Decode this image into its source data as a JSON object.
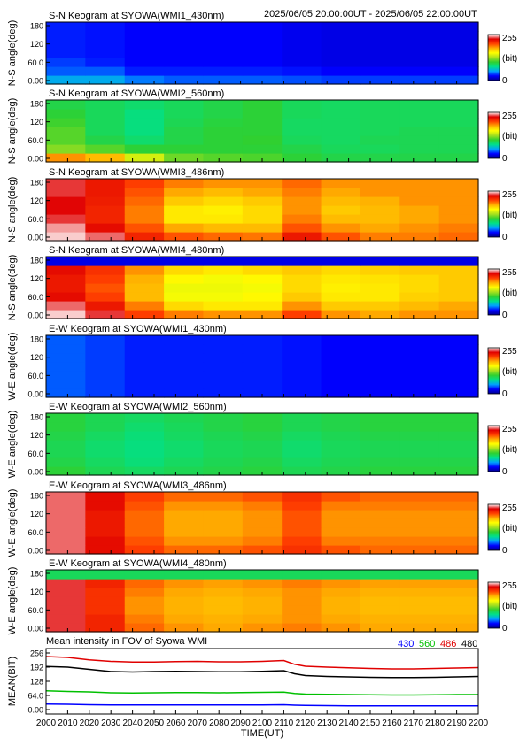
{
  "header": {
    "time_range": "2025/06/05 20:00:00UT - 2025/06/05 22:00:00UT"
  },
  "colorbar": {
    "max_label": "255",
    "unit_label": "(bit)",
    "min_label": "0",
    "stops": [
      "#00008b",
      "#0000ff",
      "#00a0ff",
      "#00e08a",
      "#30d030",
      "#a8e01e",
      "#ffff00",
      "#ffb000",
      "#ff4000",
      "#e00000",
      "#ffffff"
    ]
  },
  "chart_data": [
    {
      "type": "heatmap",
      "title": "S-N Keogram at SYOWA(WMI1_430nm)",
      "ylabel": "N-S angle(deg)",
      "yticks": [
        "180",
        "120",
        "60.0",
        "0.00"
      ],
      "ylim": [
        0,
        180
      ],
      "xlim": [
        2000,
        2200
      ],
      "value_range": [
        0,
        255
      ],
      "columns_x": [
        2000,
        2020,
        2040,
        2060,
        2080,
        2100,
        2120,
        2140,
        2160,
        2180,
        2200
      ],
      "rows_angle": [
        0,
        30,
        60,
        90,
        120,
        150,
        180
      ],
      "values": [
        [
          55,
          55,
          45,
          40,
          40,
          40,
          38,
          35,
          35,
          35,
          35
        ],
        [
          40,
          40,
          30,
          30,
          30,
          30,
          28,
          25,
          25,
          25,
          25
        ],
        [
          35,
          30,
          25,
          25,
          25,
          25,
          22,
          20,
          20,
          20,
          20
        ],
        [
          30,
          28,
          25,
          25,
          25,
          25,
          22,
          20,
          20,
          20,
          20
        ],
        [
          30,
          28,
          25,
          25,
          25,
          25,
          22,
          20,
          20,
          20,
          20
        ],
        [
          30,
          28,
          25,
          25,
          25,
          25,
          22,
          20,
          20,
          20,
          20
        ],
        [
          30,
          28,
          25,
          25,
          25,
          25,
          22,
          20,
          20,
          20,
          20
        ]
      ]
    },
    {
      "type": "heatmap",
      "title": "S-N Keogram at SYOWA(WMI2_560nm)",
      "ylabel": "N-S angle(deg)",
      "yticks": [
        "180",
        "120",
        "60.0",
        "0.00"
      ],
      "ylim": [
        0,
        180
      ],
      "xlim": [
        2000,
        2200
      ],
      "value_range": [
        0,
        255
      ],
      "columns_x": [
        2000,
        2020,
        2040,
        2060,
        2080,
        2100,
        2120,
        2140,
        2160,
        2180,
        2200
      ],
      "rows_angle": [
        0,
        30,
        60,
        90,
        120,
        150,
        180
      ],
      "values": [
        [
          185,
          175,
          140,
          115,
          110,
          108,
          100,
          95,
          95,
          95,
          95
        ],
        [
          120,
          110,
          100,
          100,
          100,
          100,
          95,
          90,
          90,
          92,
          92
        ],
        [
          110,
          95,
          85,
          95,
          100,
          102,
          90,
          88,
          92,
          92,
          92
        ],
        [
          110,
          90,
          80,
          95,
          100,
          100,
          88,
          88,
          90,
          92,
          92
        ],
        [
          105,
          90,
          80,
          92,
          98,
          100,
          88,
          88,
          90,
          90,
          90
        ],
        [
          100,
          90,
          80,
          90,
          95,
          100,
          90,
          88,
          90,
          90,
          90
        ],
        [
          95,
          90,
          85,
          90,
          95,
          100,
          90,
          88,
          90,
          90,
          90
        ]
      ]
    },
    {
      "type": "heatmap",
      "title": "S-N Keogram at SYOWA(WMI3_486nm)",
      "ylabel": "N-S angle(deg)",
      "yticks": [
        "180",
        "120",
        "60.0",
        "0.00"
      ],
      "ylim": [
        0,
        180
      ],
      "xlim": [
        2000,
        2200
      ],
      "value_range": [
        0,
        255
      ],
      "columns_x": [
        2000,
        2020,
        2040,
        2060,
        2080,
        2100,
        2120,
        2140,
        2160,
        2180,
        2200
      ],
      "rows_angle": [
        0,
        30,
        60,
        90,
        120,
        150,
        180
      ],
      "values": [
        [
          250,
          240,
          215,
          200,
          195,
          192,
          220,
          200,
          190,
          190,
          195
        ],
        [
          245,
          225,
          200,
          180,
          175,
          175,
          200,
          185,
          180,
          185,
          190
        ],
        [
          235,
          215,
          190,
          160,
          160,
          165,
          190,
          175,
          175,
          180,
          185
        ],
        [
          230,
          215,
          190,
          160,
          158,
          165,
          185,
          170,
          175,
          180,
          185
        ],
        [
          230,
          218,
          195,
          170,
          165,
          170,
          185,
          175,
          178,
          185,
          185
        ],
        [
          235,
          220,
          200,
          180,
          175,
          180,
          190,
          180,
          185,
          185,
          185
        ],
        [
          235,
          220,
          205,
          190,
          185,
          185,
          195,
          185,
          185,
          185,
          185
        ]
      ]
    },
    {
      "type": "heatmap",
      "title": "S-N Keogram at SYOWA(WMI4_480nm)",
      "ylabel": "N-S angle(deg)",
      "yticks": [
        "180",
        "120",
        "60.0",
        "0.00"
      ],
      "ylim": [
        0,
        180
      ],
      "xlim": [
        2000,
        2200
      ],
      "value_range": [
        0,
        255
      ],
      "columns_x": [
        2000,
        2020,
        2040,
        2060,
        2080,
        2100,
        2120,
        2140,
        2160,
        2180,
        2200
      ],
      "rows_angle": [
        0,
        30,
        60,
        90,
        120,
        150,
        180
      ],
      "values": [
        [
          250,
          235,
          205,
          190,
          185,
          185,
          205,
          185,
          180,
          185,
          185
        ],
        [
          240,
          220,
          190,
          165,
          160,
          160,
          185,
          170,
          170,
          175,
          180
        ],
        [
          225,
          205,
          175,
          150,
          150,
          155,
          170,
          160,
          160,
          168,
          170
        ],
        [
          220,
          200,
          175,
          148,
          148,
          150,
          165,
          158,
          160,
          165,
          170
        ],
        [
          220,
          205,
          178,
          155,
          150,
          155,
          165,
          160,
          162,
          165,
          170
        ],
        [
          225,
          210,
          185,
          165,
          160,
          165,
          170,
          165,
          168,
          170,
          170
        ],
        [
          20,
          20,
          20,
          20,
          20,
          20,
          20,
          20,
          20,
          20,
          20
        ]
      ]
    },
    {
      "type": "heatmap",
      "title": "E-W Keogram at SYOWA(WMI1_430nm)",
      "ylabel": "W-E angle(deg)",
      "yticks": [
        "180",
        "120",
        "60.0",
        "0.00"
      ],
      "ylim": [
        0,
        180
      ],
      "xlim": [
        2000,
        2200
      ],
      "value_range": [
        0,
        255
      ],
      "columns_x": [
        2000,
        2020,
        2040,
        2060,
        2080,
        2100,
        2120,
        2140,
        2160,
        2180,
        2200
      ],
      "rows_angle": [
        0,
        30,
        60,
        90,
        120,
        150,
        180
      ],
      "values": [
        [
          40,
          35,
          30,
          30,
          30,
          30,
          28,
          25,
          25,
          25,
          25
        ],
        [
          40,
          35,
          30,
          30,
          30,
          30,
          28,
          25,
          25,
          25,
          25
        ],
        [
          40,
          35,
          30,
          30,
          30,
          30,
          28,
          25,
          25,
          25,
          25
        ],
        [
          40,
          35,
          30,
          30,
          30,
          30,
          28,
          25,
          25,
          25,
          25
        ],
        [
          40,
          35,
          30,
          30,
          30,
          30,
          28,
          25,
          25,
          25,
          25
        ],
        [
          40,
          35,
          30,
          30,
          30,
          30,
          28,
          25,
          25,
          25,
          25
        ],
        [
          40,
          35,
          30,
          30,
          30,
          30,
          28,
          25,
          25,
          25,
          25
        ]
      ]
    },
    {
      "type": "heatmap",
      "title": "E-W Keogram at SYOWA(WMI2_560nm)",
      "ylabel": "W-E angle(deg)",
      "yticks": [
        "180",
        "120",
        "60.0",
        "0.00"
      ],
      "ylim": [
        0,
        180
      ],
      "xlim": [
        2000,
        2200
      ],
      "value_range": [
        0,
        255
      ],
      "columns_x": [
        2000,
        2020,
        2040,
        2060,
        2080,
        2100,
        2120,
        2140,
        2160,
        2180,
        2200
      ],
      "rows_angle": [
        0,
        30,
        60,
        90,
        120,
        150,
        180
      ],
      "values": [
        [
          100,
          92,
          88,
          92,
          95,
          98,
          92,
          95,
          98,
          98,
          98
        ],
        [
          95,
          88,
          82,
          88,
          92,
          95,
          88,
          92,
          95,
          95,
          95
        ],
        [
          92,
          85,
          80,
          85,
          90,
          92,
          85,
          90,
          92,
          92,
          92
        ],
        [
          92,
          85,
          80,
          85,
          90,
          92,
          85,
          90,
          92,
          92,
          92
        ],
        [
          95,
          88,
          82,
          88,
          92,
          95,
          88,
          92,
          95,
          95,
          95
        ],
        [
          98,
          92,
          85,
          90,
          95,
          98,
          92,
          95,
          98,
          98,
          98
        ],
        [
          98,
          92,
          88,
          92,
          95,
          98,
          92,
          95,
          98,
          98,
          98
        ]
      ]
    },
    {
      "type": "heatmap",
      "title": "E-W Keogram at SYOWA(WMI3_486nm)",
      "ylabel": "W-E angle(deg)",
      "yticks": [
        "180",
        "120",
        "60.0",
        "0.00"
      ],
      "ylim": [
        0,
        180
      ],
      "xlim": [
        2000,
        2200
      ],
      "value_range": [
        0,
        255
      ],
      "columns_x": [
        2000,
        2020,
        2040,
        2060,
        2080,
        2100,
        2120,
        2140,
        2160,
        2180,
        2200
      ],
      "rows_angle": [
        0,
        30,
        60,
        90,
        120,
        150,
        180
      ],
      "values": [
        [
          240,
          225,
          205,
          195,
          195,
          200,
          210,
          200,
          195,
          195,
          195
        ],
        [
          240,
          225,
          200,
          185,
          185,
          190,
          205,
          190,
          190,
          190,
          190
        ],
        [
          240,
          220,
          195,
          180,
          180,
          185,
          200,
          185,
          185,
          185,
          185
        ],
        [
          240,
          220,
          195,
          180,
          180,
          185,
          200,
          185,
          185,
          185,
          185
        ],
        [
          240,
          220,
          195,
          180,
          180,
          185,
          200,
          185,
          185,
          185,
          185
        ],
        [
          240,
          225,
          200,
          185,
          185,
          190,
          205,
          190,
          190,
          190,
          190
        ],
        [
          240,
          225,
          205,
          195,
          195,
          200,
          210,
          200,
          195,
          195,
          195
        ]
      ]
    },
    {
      "type": "heatmap",
      "title": "E-W Keogram at SYOWA(WMI4_480nm)",
      "ylabel": "W-E angle(deg)",
      "yticks": [
        "180",
        "120",
        "60.0",
        "0.00"
      ],
      "ylim": [
        0,
        180
      ],
      "xlim": [
        2000,
        2200
      ],
      "value_range": [
        0,
        255
      ],
      "columns_x": [
        2000,
        2020,
        2040,
        2060,
        2080,
        2100,
        2120,
        2140,
        2160,
        2180,
        2200
      ],
      "rows_angle": [
        0,
        30,
        60,
        90,
        120,
        150,
        180
      ],
      "values": [
        [
          235,
          215,
          195,
          185,
          180,
          185,
          190,
          185,
          180,
          180,
          180
        ],
        [
          235,
          215,
          190,
          180,
          178,
          180,
          185,
          180,
          178,
          178,
          178
        ],
        [
          235,
          210,
          185,
          178,
          175,
          178,
          185,
          178,
          175,
          175,
          175
        ],
        [
          235,
          210,
          185,
          178,
          175,
          178,
          185,
          178,
          175,
          175,
          175
        ],
        [
          235,
          210,
          190,
          180,
          178,
          180,
          185,
          180,
          178,
          178,
          178
        ],
        [
          235,
          215,
          195,
          185,
          182,
          185,
          190,
          185,
          182,
          182,
          182
        ],
        [
          90,
          90,
          90,
          90,
          90,
          90,
          90,
          90,
          90,
          90,
          90
        ]
      ]
    },
    {
      "type": "line",
      "title": "Mean intensity in FOV of Syowa WMI",
      "xlabel": "TIME(UT)",
      "ylabel": "MEAN(BIT)",
      "xlim": [
        2000,
        2200
      ],
      "ylim": [
        0,
        256
      ],
      "xticks": [
        "2000",
        "2010",
        "2020",
        "2030",
        "2040",
        "2050",
        "2060",
        "2070",
        "2080",
        "2090",
        "2100",
        "2110",
        "2120",
        "2130",
        "2140",
        "2150",
        "2160",
        "2170",
        "2180",
        "2190",
        "2200"
      ],
      "yticks": [
        "256",
        "192",
        "128",
        "64.0",
        "0.00"
      ],
      "x": [
        2000,
        2010,
        2020,
        2030,
        2040,
        2050,
        2060,
        2070,
        2080,
        2090,
        2100,
        2110,
        2115,
        2120,
        2130,
        2140,
        2150,
        2160,
        2170,
        2180,
        2190,
        2200
      ],
      "series": [
        {
          "name": "430",
          "color": "#0000ff",
          "values": [
            25,
            24,
            22,
            21,
            21,
            21,
            21,
            21,
            21,
            21,
            21,
            22,
            20,
            19,
            18,
            17,
            17,
            17,
            17,
            17,
            17,
            17
          ]
        },
        {
          "name": "560",
          "color": "#00c000",
          "values": [
            85,
            82,
            80,
            76,
            75,
            76,
            77,
            77,
            76,
            77,
            78,
            79,
            73,
            70,
            69,
            68,
            67,
            66,
            66,
            67,
            68,
            68
          ]
        },
        {
          "name": "486",
          "color": "#e00000",
          "values": [
            240,
            236,
            225,
            218,
            215,
            215,
            217,
            218,
            216,
            216,
            218,
            222,
            205,
            196,
            192,
            189,
            186,
            184,
            184,
            186,
            188,
            190
          ]
        },
        {
          "name": "480",
          "color": "#000000",
          "values": [
            195,
            192,
            182,
            172,
            170,
            172,
            173,
            172,
            171,
            171,
            173,
            176,
            162,
            154,
            150,
            148,
            146,
            145,
            145,
            146,
            148,
            150
          ]
        }
      ]
    }
  ]
}
